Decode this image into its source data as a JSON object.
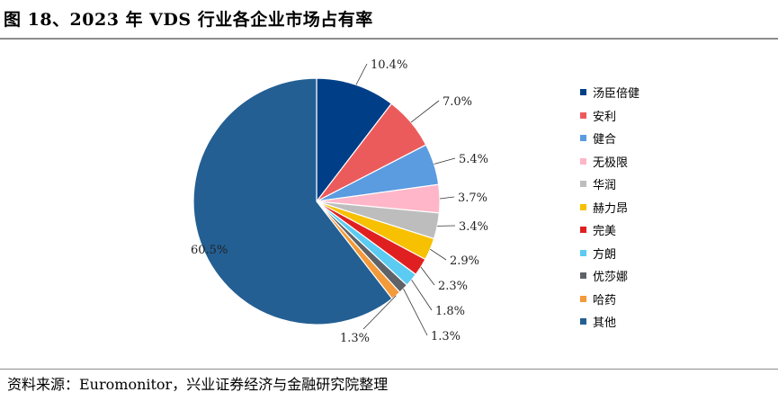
{
  "title": "图 18、2023 年 VDS 行业各企业市场占有率",
  "source": "资料来源：Euromonitor，兴业证券经济与金融研究院整理",
  "chart_data": {
    "type": "pie",
    "start_angle_deg": 90,
    "direction": "clockwise",
    "legend_position": "right",
    "slices": [
      {
        "name": "汤臣倍健",
        "value": 10.4,
        "label": "10.4%",
        "color": "#003F87"
      },
      {
        "name": "安利",
        "value": 7.0,
        "label": "7.0%",
        "color": "#EC5B5C"
      },
      {
        "name": "健合",
        "value": 5.4,
        "label": "5.4%",
        "color": "#5B9BE0"
      },
      {
        "name": "无极限",
        "value": 3.7,
        "label": "3.7%",
        "color": "#FFB6C8"
      },
      {
        "name": "华润",
        "value": 3.4,
        "label": "3.4%",
        "color": "#BDBDBD"
      },
      {
        "name": "赫力昂",
        "value": 2.9,
        "label": "2.9%",
        "color": "#F7C000"
      },
      {
        "name": "完美",
        "value": 2.3,
        "label": "2.3%",
        "color": "#E02020"
      },
      {
        "name": "方朗",
        "value": 1.8,
        "label": "1.8%",
        "color": "#5CCBF2"
      },
      {
        "name": "优莎娜",
        "value": 1.3,
        "label": "1.3%",
        "color": "#5F6368"
      },
      {
        "name": "哈药",
        "value": 1.3,
        "label": "1.3%",
        "color": "#F39A3A"
      },
      {
        "name": "其他",
        "value": 60.5,
        "label": "60.5%",
        "color": "#235F93"
      }
    ]
  }
}
